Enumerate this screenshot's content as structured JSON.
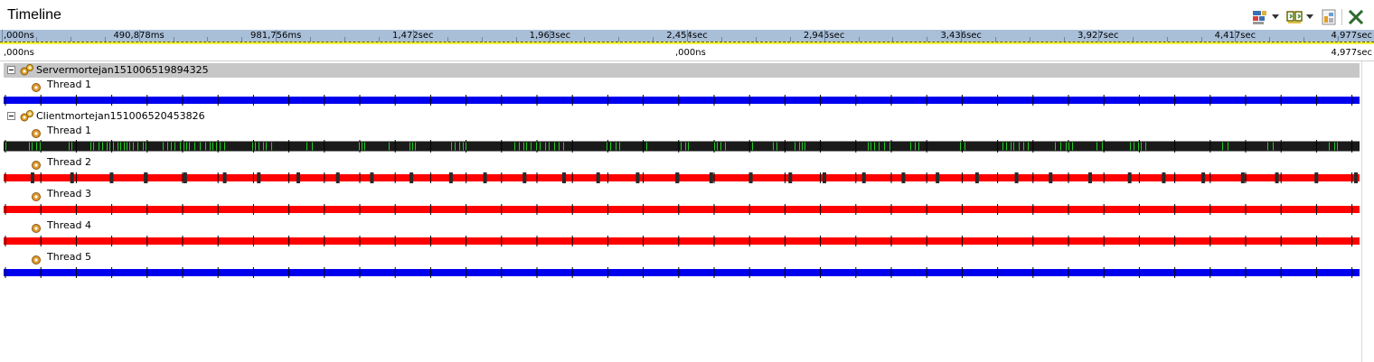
{
  "window": {
    "title": "Timeline"
  },
  "toolbar": {
    "buttons": [
      {
        "name": "layout-icon",
        "has_dropdown": true
      },
      {
        "name": "filter-icon",
        "has_dropdown": true
      },
      {
        "name": "export-icon",
        "has_dropdown": false
      },
      {
        "name": "close-icon",
        "has_dropdown": false
      }
    ],
    "colors": {
      "close": "#2e6b2e"
    }
  },
  "ruler_overview": {
    "labels": [
      ",000ns",
      "490,878ms",
      "981,756ms",
      "1,472sec",
      "1,963sec",
      "2,454sec",
      "2,945sec",
      "3,436sec",
      "3,927sec",
      "4,417sec",
      "4,977sec"
    ],
    "background": "#a9bfd8",
    "highlight": "#f0f040"
  },
  "ruler_detail": {
    "start_label": ",000ns",
    "mid_label": ",000ns",
    "end_label": "4,977sec"
  },
  "processes": [
    {
      "label": "Servermortejan151006519894325",
      "selected": true,
      "expanded": true,
      "threads": [
        {
          "label": "Thread 1",
          "track": {
            "style": "solid",
            "color": "#0000ee"
          }
        }
      ]
    },
    {
      "label": "Clientmortejan151006520453826",
      "selected": false,
      "expanded": true,
      "threads": [
        {
          "label": "Thread 1",
          "track": {
            "style": "activity",
            "color": "#1a1a1a",
            "accent": "#22cc22"
          }
        },
        {
          "label": "Thread 2",
          "track": {
            "style": "markers",
            "color": "#ff0000",
            "marker_color": "#2a2a2a",
            "marker_count": 36
          }
        },
        {
          "label": "Thread 3",
          "track": {
            "style": "solid",
            "color": "#ff0000"
          }
        },
        {
          "label": "Thread 4",
          "track": {
            "style": "solid",
            "color": "#ff0000"
          }
        },
        {
          "label": "Thread 5",
          "track": {
            "style": "solid",
            "color": "#0000ee"
          }
        }
      ]
    }
  ]
}
